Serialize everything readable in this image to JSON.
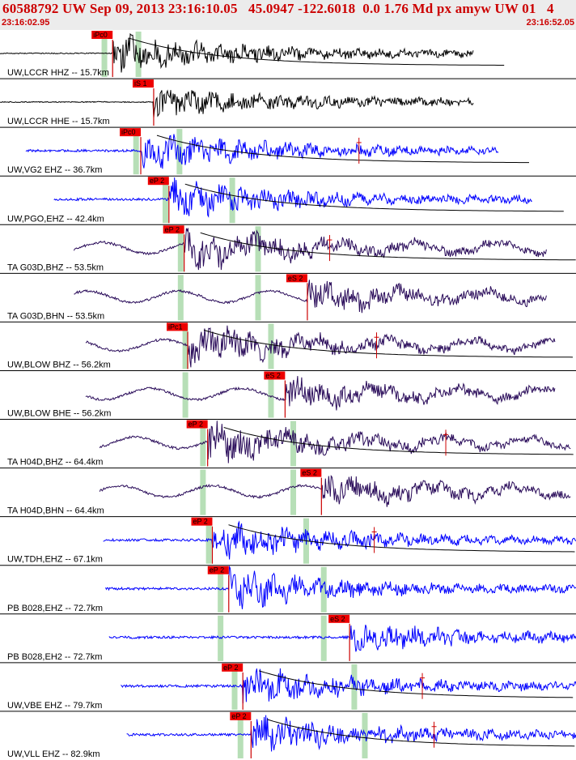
{
  "header": {
    "title": "60588792 UW Sep 09, 2013 23:16:10.05   45.0947 -122.6018  0.0 1.76 Md px amyw UW 01   4",
    "start_time": "23:16:02.95",
    "end_time": "23:16:52.05"
  },
  "colors": {
    "header_bg": "#ececec",
    "header_text": "#cc0000",
    "pick_box": "#ee0000",
    "pick_line": "#cc0000",
    "window_band": "#b7dfb7",
    "trace_black": "#000000",
    "trace_blue": "#0000ff",
    "trace_purple": "#2a0c5a",
    "coda_curve": "#000000",
    "separator": "#000000"
  },
  "chart_data": {
    "type": "seismogram",
    "title": "60588792 UW Sep 09, 2013 23:16:10.05   45.0947 -122.6018  0.0 1.76 Md px amyw UW 01   4",
    "x_axis": {
      "start": "23:16:02.95",
      "end": "23:16:52.05",
      "unit": "time"
    },
    "traces": [
      {
        "label": "UW,LCCR HHZ -- 15.7km",
        "color": "black",
        "pick": "iPc0",
        "pick_time": 9.6,
        "wave": "P",
        "start": 0.0,
        "end": 40.4,
        "windows": [
          8.9,
          11.8
        ],
        "coda": true
      },
      {
        "label": "UW,LCCR HHE -- 15.7km",
        "color": "black",
        "pick": "iS 1",
        "pick_time": 13.1,
        "wave": "S",
        "start": 0.0,
        "end": 40.4,
        "windows": [],
        "coda": false
      },
      {
        "label": "UW,VG2 EHZ -- 36.7km",
        "color": "blue",
        "pick": "iPc0",
        "pick_time": 12.0,
        "wave": "P",
        "start": 2.2,
        "end": 42.5,
        "windows": [
          11.6,
          15.3
        ],
        "coda": true,
        "marker_time": 30.6
      },
      {
        "label": "UW,PGO,EHZ -- 42.4km",
        "color": "blue",
        "pick": "eP 2",
        "pick_time": 14.4,
        "wave": "P",
        "start": 4.6,
        "end": 45.4,
        "windows": [
          14.1,
          19.8
        ],
        "coda": true
      },
      {
        "label": "TA G03D,BHZ -- 53.5km",
        "color": "purple",
        "pick": "eP 2",
        "pick_time": 15.7,
        "wave": "P",
        "start": 6.3,
        "end": 46.6,
        "windows": [
          15.4,
          22.0
        ],
        "coda": true,
        "marker_time": 28.1
      },
      {
        "label": "TA G03D,BHN -- 53.5km",
        "color": "purple",
        "pick": "eS 2",
        "pick_time": 26.2,
        "wave": "S",
        "start": 6.3,
        "end": 46.6,
        "windows": [
          15.4,
          22.0
        ],
        "coda": false
      },
      {
        "label": "UW,BLOW BHZ -- 56.2km",
        "color": "purple",
        "pick": "iPc1",
        "pick_time": 16.0,
        "wave": "P",
        "start": 7.3,
        "end": 47.3,
        "windows": [
          15.8,
          23.1
        ],
        "coda": true,
        "marker_time": 32.1
      },
      {
        "label": "UW,BLOW BHE -- 56.2km",
        "color": "purple",
        "pick": "eS 2",
        "pick_time": 24.3,
        "wave": "S",
        "start": 7.3,
        "end": 47.3,
        "windows": [
          15.8,
          23.1
        ],
        "coda": false
      },
      {
        "label": "TA H04D,BHZ -- 64.4km",
        "color": "purple",
        "pick": "eP 2",
        "pick_time": 17.7,
        "wave": "P",
        "start": 8.5,
        "end": 48.7,
        "windows": [
          17.3,
          25.0
        ],
        "coda": true,
        "marker_time": 38.0
      },
      {
        "label": "TA H04D,BHN -- 64.4km",
        "color": "purple",
        "pick": "eS 2",
        "pick_time": 27.4,
        "wave": "S",
        "start": 8.5,
        "end": 48.7,
        "windows": [
          17.3,
          25.0
        ],
        "coda": false
      },
      {
        "label": "UW,TDH,EHZ -- 67.1km",
        "color": "blue",
        "pick": "eP 2",
        "pick_time": 18.1,
        "wave": "P",
        "start": 8.8,
        "end": 49.1,
        "windows": [
          17.8,
          26.1
        ],
        "coda": true,
        "marker_time": 31.9
      },
      {
        "label": "PB B028,EHZ -- 72.7km",
        "color": "blue",
        "pick": "eP 2",
        "pick_time": 19.5,
        "wave": "P",
        "start": 9.0,
        "end": 50.0,
        "windows": [
          18.8,
          27.6
        ],
        "coda": false
      },
      {
        "label": "PB B028,EH2 -- 72.7km",
        "color": "blue",
        "pick": "eS 2",
        "pick_time": 29.8,
        "wave": "S",
        "start": 9.3,
        "end": 49.4,
        "windows": [
          18.8,
          27.6
        ],
        "coda": false
      },
      {
        "label": "UW,VBE EHZ -- 79.7km",
        "color": "blue",
        "pick": "eP 2",
        "pick_time": 20.7,
        "wave": "P",
        "start": 10.3,
        "end": 50.4,
        "windows": [
          20.0,
          30.2
        ],
        "coda": true,
        "marker_time": 36.0
      },
      {
        "label": "UW,VLL EHZ -- 82.9km",
        "color": "blue",
        "pick": "eP 2",
        "pick_time": 21.4,
        "wave": "P",
        "start": 10.8,
        "end": 50.4,
        "windows": [
          20.5,
          31.1
        ],
        "coda": true,
        "marker_time": 37.0
      }
    ]
  }
}
